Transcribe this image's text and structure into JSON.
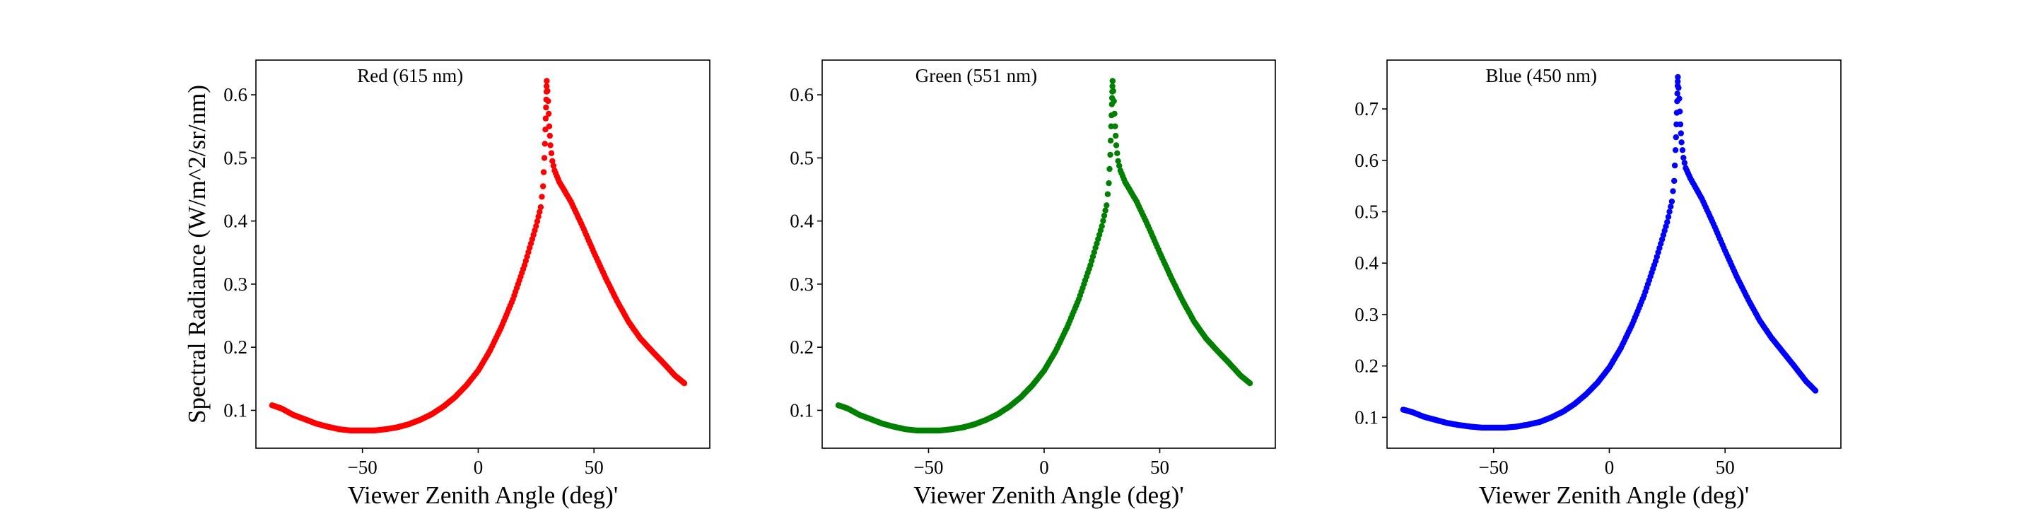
{
  "chart_data": [
    {
      "type": "scatter",
      "title": "Red (615 nm)",
      "xlabel": "Viewer Zenith Angle (deg)'",
      "ylabel": "Spectral Radiance (W/m^2/sr/nm)",
      "xlim": [
        -96,
        100
      ],
      "ylim": [
        0.04,
        0.655
      ],
      "xticks": [
        -50,
        0,
        50
      ],
      "xtick_labels": [
        "−50",
        "0",
        "50"
      ],
      "yticks": [
        0.1,
        0.2,
        0.3,
        0.4,
        0.5,
        0.6
      ],
      "ytick_labels": [
        "0.1",
        "0.2",
        "0.3",
        "0.4",
        "0.5",
        "0.6"
      ],
      "grid": false,
      "series": [
        {
          "color": "#ff0000",
          "points": [
            [
              -89,
              0.108
            ],
            [
              -85,
              0.103
            ],
            [
              -80,
              0.093
            ],
            [
              -75,
              0.086
            ],
            [
              -70,
              0.079
            ],
            [
              -65,
              0.074
            ],
            [
              -60,
              0.07
            ],
            [
              -55,
              0.068
            ],
            [
              -50,
              0.068
            ],
            [
              -45,
              0.068
            ],
            [
              -40,
              0.07
            ],
            [
              -35,
              0.073
            ],
            [
              -30,
              0.078
            ],
            [
              -25,
              0.085
            ],
            [
              -20,
              0.094
            ],
            [
              -15,
              0.106
            ],
            [
              -10,
              0.121
            ],
            [
              -5,
              0.14
            ],
            [
              0,
              0.163
            ],
            [
              5,
              0.194
            ],
            [
              10,
              0.232
            ],
            [
              15,
              0.276
            ],
            [
              20,
              0.33
            ],
            [
              25,
              0.392
            ],
            [
              27,
              0.422
            ],
            [
              28,
              0.455
            ],
            [
              28.6,
              0.5
            ],
            [
              29,
              0.545
            ],
            [
              29.3,
              0.58
            ],
            [
              29.5,
              0.605
            ],
            [
              29.6,
              0.622
            ],
            [
              30.2,
              0.59
            ],
            [
              30.7,
              0.55
            ],
            [
              31.2,
              0.52
            ],
            [
              32,
              0.495
            ],
            [
              33,
              0.48
            ],
            [
              35,
              0.462
            ],
            [
              40,
              0.431
            ],
            [
              45,
              0.392
            ],
            [
              50,
              0.35
            ],
            [
              55,
              0.31
            ],
            [
              60,
              0.273
            ],
            [
              65,
              0.24
            ],
            [
              70,
              0.214
            ],
            [
              75,
              0.194
            ],
            [
              80,
              0.175
            ],
            [
              85,
              0.155
            ],
            [
              89,
              0.143
            ]
          ]
        }
      ]
    },
    {
      "type": "scatter",
      "title": "Green (551 nm)",
      "xlabel": "Viewer Zenith Angle (deg)'",
      "ylabel": "",
      "xlim": [
        -96,
        100
      ],
      "ylim": [
        0.04,
        0.655
      ],
      "xticks": [
        -50,
        0,
        50
      ],
      "xtick_labels": [
        "−50",
        "0",
        "50"
      ],
      "yticks": [
        0.1,
        0.2,
        0.3,
        0.4,
        0.5,
        0.6
      ],
      "ytick_labels": [
        "0.1",
        "0.2",
        "0.3",
        "0.4",
        "0.5",
        "0.6"
      ],
      "grid": false,
      "series": [
        {
          "color": "#008000",
          "points": [
            [
              -89,
              0.108
            ],
            [
              -85,
              0.103
            ],
            [
              -80,
              0.093
            ],
            [
              -75,
              0.086
            ],
            [
              -70,
              0.079
            ],
            [
              -65,
              0.074
            ],
            [
              -60,
              0.07
            ],
            [
              -55,
              0.068
            ],
            [
              -50,
              0.068
            ],
            [
              -45,
              0.068
            ],
            [
              -40,
              0.07
            ],
            [
              -35,
              0.073
            ],
            [
              -30,
              0.078
            ],
            [
              -25,
              0.085
            ],
            [
              -20,
              0.094
            ],
            [
              -15,
              0.106
            ],
            [
              -10,
              0.121
            ],
            [
              -5,
              0.14
            ],
            [
              0,
              0.163
            ],
            [
              5,
              0.194
            ],
            [
              10,
              0.232
            ],
            [
              15,
              0.276
            ],
            [
              20,
              0.33
            ],
            [
              25,
              0.392
            ],
            [
              27,
              0.425
            ],
            [
              28,
              0.46
            ],
            [
              28.6,
              0.505
            ],
            [
              29,
              0.55
            ],
            [
              29.3,
              0.585
            ],
            [
              29.5,
              0.605
            ],
            [
              29.6,
              0.622
            ],
            [
              30.2,
              0.59
            ],
            [
              30.7,
              0.55
            ],
            [
              31.2,
              0.52
            ],
            [
              32,
              0.495
            ],
            [
              33,
              0.48
            ],
            [
              35,
              0.462
            ],
            [
              40,
              0.431
            ],
            [
              45,
              0.392
            ],
            [
              50,
              0.35
            ],
            [
              55,
              0.31
            ],
            [
              60,
              0.273
            ],
            [
              65,
              0.24
            ],
            [
              70,
              0.214
            ],
            [
              75,
              0.194
            ],
            [
              80,
              0.175
            ],
            [
              85,
              0.155
            ],
            [
              89,
              0.143
            ]
          ]
        }
      ]
    },
    {
      "type": "scatter",
      "title": "Blue (450 nm)",
      "xlabel": "Viewer Zenith Angle (deg)'",
      "ylabel": "",
      "xlim": [
        -96,
        100
      ],
      "ylim": [
        0.04,
        0.795
      ],
      "xticks": [
        -50,
        0,
        50
      ],
      "xtick_labels": [
        "−50",
        "0",
        "50"
      ],
      "yticks": [
        0.1,
        0.2,
        0.3,
        0.4,
        0.5,
        0.6,
        0.7
      ],
      "ytick_labels": [
        "0.1",
        "0.2",
        "0.3",
        "0.4",
        "0.5",
        "0.6",
        "0.7"
      ],
      "grid": false,
      "series": [
        {
          "color": "#0000ff",
          "points": [
            [
              -89,
              0.115
            ],
            [
              -85,
              0.11
            ],
            [
              -80,
              0.101
            ],
            [
              -75,
              0.095
            ],
            [
              -70,
              0.089
            ],
            [
              -65,
              0.085
            ],
            [
              -60,
              0.082
            ],
            [
              -55,
              0.08
            ],
            [
              -50,
              0.08
            ],
            [
              -45,
              0.08
            ],
            [
              -40,
              0.082
            ],
            [
              -35,
              0.086
            ],
            [
              -30,
              0.091
            ],
            [
              -25,
              0.1
            ],
            [
              -20,
              0.111
            ],
            [
              -15,
              0.126
            ],
            [
              -10,
              0.145
            ],
            [
              -5,
              0.168
            ],
            [
              0,
              0.197
            ],
            [
              5,
              0.235
            ],
            [
              10,
              0.282
            ],
            [
              15,
              0.337
            ],
            [
              20,
              0.404
            ],
            [
              25,
              0.48
            ],
            [
              27,
              0.52
            ],
            [
              28,
              0.56
            ],
            [
              28.6,
              0.62
            ],
            [
              29,
              0.67
            ],
            [
              29.3,
              0.715
            ],
            [
              29.5,
              0.745
            ],
            [
              29.6,
              0.762
            ],
            [
              30.2,
              0.72
            ],
            [
              30.7,
              0.67
            ],
            [
              31.2,
              0.635
            ],
            [
              32,
              0.605
            ],
            [
              33,
              0.585
            ],
            [
              35,
              0.565
            ],
            [
              40,
              0.525
            ],
            [
              45,
              0.476
            ],
            [
              50,
              0.424
            ],
            [
              55,
              0.374
            ],
            [
              60,
              0.329
            ],
            [
              65,
              0.288
            ],
            [
              70,
              0.255
            ],
            [
              75,
              0.227
            ],
            [
              80,
              0.199
            ],
            [
              85,
              0.17
            ],
            [
              89,
              0.152
            ]
          ]
        }
      ]
    }
  ]
}
